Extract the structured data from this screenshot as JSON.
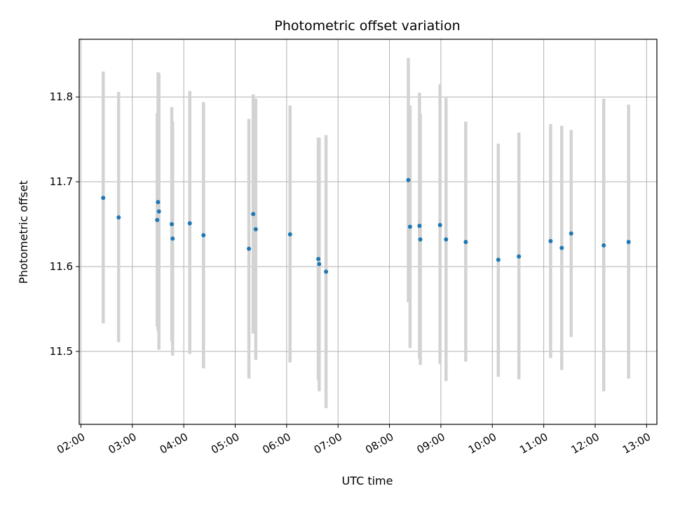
{
  "chart_data": {
    "type": "scatter",
    "title": "Photometric offset variation",
    "xlabel": "UTC time",
    "ylabel": "Photometric offset",
    "x_axis_type": "time",
    "xlim": [
      "01:58",
      "13:12"
    ],
    "ylim": [
      11.414,
      11.868
    ],
    "x_ticks": [
      "02:00",
      "03:00",
      "04:00",
      "05:00",
      "06:00",
      "07:00",
      "08:00",
      "09:00",
      "10:00",
      "11:00",
      "12:00",
      "13:00"
    ],
    "y_ticks": [
      11.5,
      11.6,
      11.7,
      11.8
    ],
    "y_tick_labels": [
      "11.5",
      "11.6",
      "11.7",
      "11.8"
    ],
    "grid": true,
    "legend": "none",
    "colors": {
      "marker": "#1f77b4",
      "errorbar": "#d3d3d3",
      "grid": "#b0b0b0"
    },
    "points": [
      {
        "t": "02:26",
        "y": 11.681,
        "lo": 11.533,
        "hi": 11.83
      },
      {
        "t": "02:44",
        "y": 11.658,
        "lo": 11.511,
        "hi": 11.806
      },
      {
        "t": "03:29",
        "y": 11.655,
        "lo": 11.529,
        "hi": 11.781
      },
      {
        "t": "03:30",
        "y": 11.676,
        "lo": 11.524,
        "hi": 11.829
      },
      {
        "t": "03:31",
        "y": 11.665,
        "lo": 11.502,
        "hi": 11.828
      },
      {
        "t": "03:46",
        "y": 11.65,
        "lo": 11.512,
        "hi": 11.788
      },
      {
        "t": "03:47",
        "y": 11.633,
        "lo": 11.495,
        "hi": 11.771
      },
      {
        "t": "04:07",
        "y": 11.651,
        "lo": 11.497,
        "hi": 11.807
      },
      {
        "t": "04:23",
        "y": 11.637,
        "lo": 11.48,
        "hi": 11.794
      },
      {
        "t": "05:16",
        "y": 11.621,
        "lo": 11.468,
        "hi": 11.774
      },
      {
        "t": "05:21",
        "y": 11.662,
        "lo": 11.521,
        "hi": 11.803
      },
      {
        "t": "05:24",
        "y": 11.644,
        "lo": 11.49,
        "hi": 11.798
      },
      {
        "t": "06:04",
        "y": 11.638,
        "lo": 11.487,
        "hi": 11.79
      },
      {
        "t": "06:37",
        "y": 11.609,
        "lo": 11.466,
        "hi": 11.752
      },
      {
        "t": "06:38",
        "y": 11.603,
        "lo": 11.453,
        "hi": 11.752
      },
      {
        "t": "06:46",
        "y": 11.594,
        "lo": 11.433,
        "hi": 11.755
      },
      {
        "t": "08:22",
        "y": 11.702,
        "lo": 11.558,
        "hi": 11.846
      },
      {
        "t": "08:24",
        "y": 11.647,
        "lo": 11.504,
        "hi": 11.79
      },
      {
        "t": "08:35",
        "y": 11.648,
        "lo": 11.491,
        "hi": 11.805
      },
      {
        "t": "08:36",
        "y": 11.632,
        "lo": 11.484,
        "hi": 11.78
      },
      {
        "t": "08:59",
        "y": 11.649,
        "lo": 11.485,
        "hi": 11.815
      },
      {
        "t": "09:06",
        "y": 11.632,
        "lo": 11.465,
        "hi": 11.799
      },
      {
        "t": "09:29",
        "y": 11.629,
        "lo": 11.488,
        "hi": 11.771
      },
      {
        "t": "10:07",
        "y": 11.608,
        "lo": 11.47,
        "hi": 11.745
      },
      {
        "t": "10:31",
        "y": 11.612,
        "lo": 11.467,
        "hi": 11.758
      },
      {
        "t": "11:08",
        "y": 11.63,
        "lo": 11.492,
        "hi": 11.768
      },
      {
        "t": "11:21",
        "y": 11.622,
        "lo": 11.478,
        "hi": 11.766
      },
      {
        "t": "11:32",
        "y": 11.639,
        "lo": 11.517,
        "hi": 11.761
      },
      {
        "t": "12:10",
        "y": 11.625,
        "lo": 11.453,
        "hi": 11.798
      },
      {
        "t": "12:39",
        "y": 11.629,
        "lo": 11.468,
        "hi": 11.791
      }
    ]
  }
}
